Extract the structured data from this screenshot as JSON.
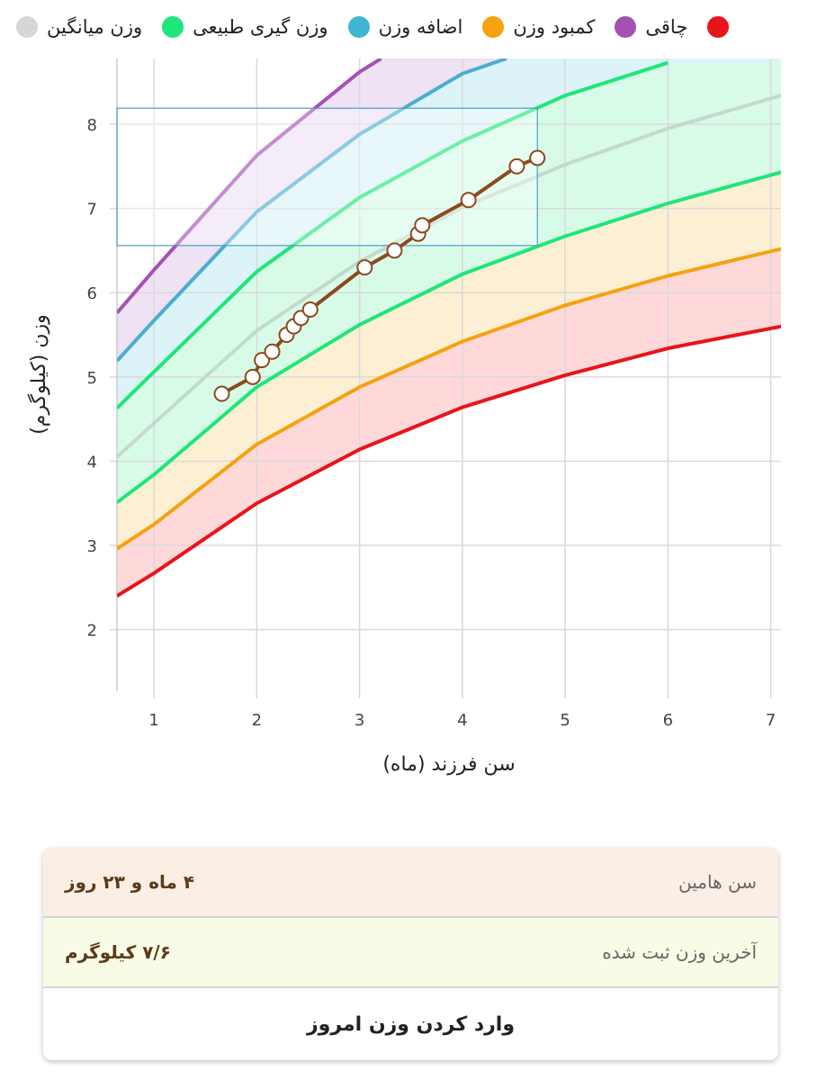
{
  "chart_data": {
    "type": "line",
    "legend": [
      {
        "name": "وزن میانگین",
        "color": "#d6d6d6"
      },
      {
        "name": "وزن گیری طبیعی",
        "color": "#1ee67a"
      },
      {
        "name": "اضافه وزن",
        "color": "#3fb6d2"
      },
      {
        "name": "کمبود وزن",
        "color": "#f5a20f"
      },
      {
        "name": "چاقی",
        "color": "#a352b4"
      },
      {
        "name": null,
        "color": "#e8141c"
      }
    ],
    "y_label": "وزن (کیلوگرم)",
    "x_label": "سن فرزند (ماه)",
    "xlim": [
      0.64,
      7.1
    ],
    "ylim": [
      1.27,
      8.78
    ],
    "xticks": [
      1,
      2,
      3,
      4,
      5,
      6,
      7
    ],
    "yticks": [
      2,
      3,
      4,
      5,
      6,
      7,
      8
    ],
    "grid": true,
    "series": [
      {
        "color": "#e8141c",
        "fill": "#ffd9d9",
        "x": [
          0.64,
          1,
          2,
          3,
          4,
          5,
          6,
          7.1
        ],
        "values": [
          2.4,
          2.67,
          3.5,
          4.14,
          4.64,
          5.02,
          5.34,
          5.6
        ]
      },
      {
        "color": "#f5a20f",
        "fill": "#fdefd3",
        "x": [
          0.64,
          1,
          2,
          3,
          4,
          5,
          6,
          7.1
        ],
        "values": [
          2.96,
          3.25,
          4.2,
          4.88,
          5.42,
          5.85,
          6.2,
          6.52
        ]
      },
      {
        "color": "#1ee67a",
        "fill": "#d8fbe8",
        "x": [
          0.64,
          1,
          2,
          3,
          4,
          5,
          6,
          7.1
        ],
        "values": [
          3.51,
          3.84,
          4.88,
          5.62,
          6.22,
          6.67,
          7.06,
          7.43
        ]
      },
      {
        "color": "#c3d9cc",
        "x": [
          0.64,
          1,
          2,
          3,
          4,
          5,
          6,
          7.1
        ],
        "values": [
          4.05,
          4.45,
          5.55,
          6.37,
          7.01,
          7.52,
          7.95,
          8.34
        ]
      },
      {
        "color": "#1ee67a",
        "fill": "#dcf3f8",
        "x": [
          0.64,
          1,
          2,
          3,
          4,
          5,
          6
        ],
        "values": [
          4.63,
          5.06,
          6.25,
          7.13,
          7.8,
          8.34,
          8.73
        ]
      },
      {
        "color": "#4aaed0",
        "fill": "#efe2f5",
        "x": [
          0.64,
          1,
          2,
          3,
          4,
          4.43
        ],
        "values": [
          5.19,
          5.67,
          6.96,
          7.88,
          8.6,
          8.78
        ]
      },
      {
        "color": "#a352b4",
        "x": [
          0.64,
          1,
          2,
          3,
          3.21
        ],
        "values": [
          5.76,
          6.27,
          7.63,
          8.62,
          8.78
        ]
      }
    ],
    "child": {
      "color": "#8b4a1e",
      "x": [
        1.66,
        1.96,
        2.05,
        2.15,
        2.29,
        2.36,
        2.43,
        2.52,
        3.05,
        3.34,
        3.57,
        3.61,
        4.06,
        4.53,
        4.73
      ],
      "values": [
        4.8,
        5.0,
        5.2,
        5.3,
        5.5,
        5.6,
        5.7,
        5.8,
        6.3,
        6.5,
        6.7,
        6.8,
        7.1,
        7.5,
        7.6
      ]
    },
    "highlight": {
      "color": "#4a9fc4",
      "x": [
        0.64,
        4.73
      ],
      "y": [
        6.56,
        8.19
      ]
    }
  },
  "card": {
    "rows": [
      {
        "label": "سن هامین",
        "value": "۴ ماه و ۲۳ روز"
      },
      {
        "label": "آخرین وزن ثبت شده",
        "value": "۷/۶ کیلوگرم"
      }
    ],
    "button": "وارد کردن وزن امروز"
  }
}
